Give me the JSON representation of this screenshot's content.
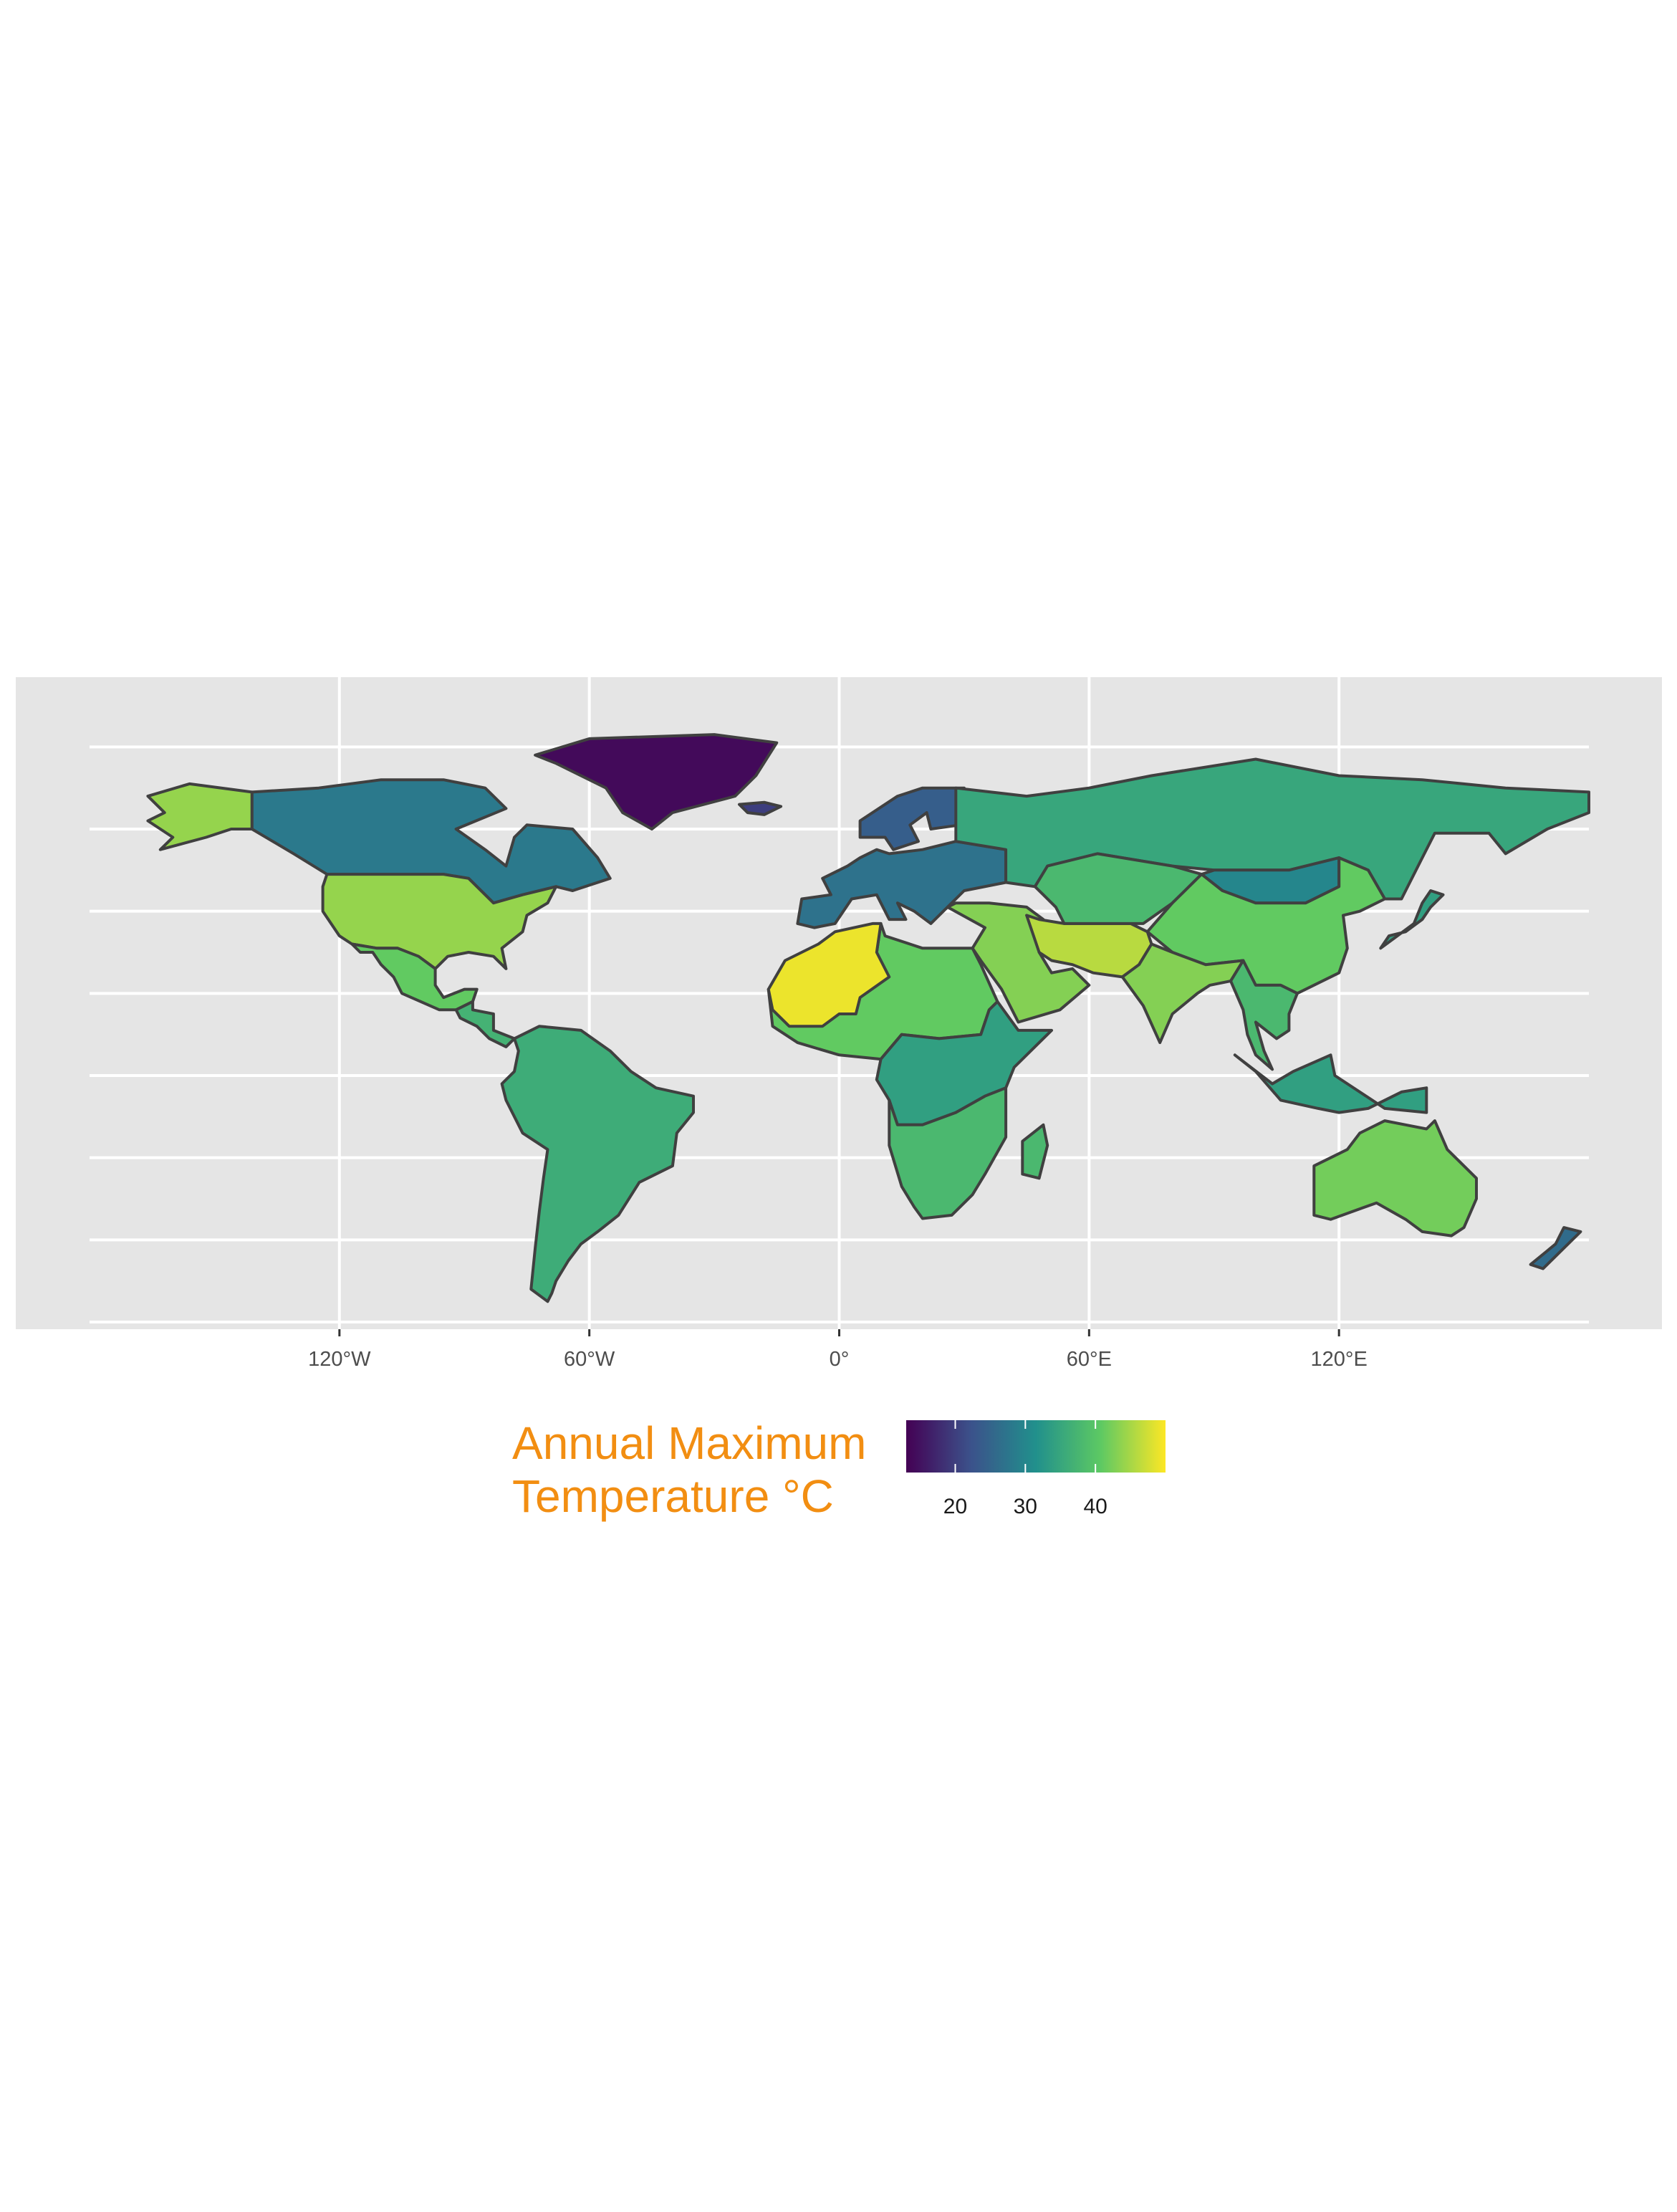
{
  "colors": {
    "panel_background": "#e5e5e5",
    "gridline": "#ffffff",
    "country_border": "#404040",
    "legend_title": "#f28e12",
    "viridis": [
      "#440154",
      "#3b528b",
      "#21908c",
      "#5dc963",
      "#fde725"
    ]
  },
  "x_axis": {
    "ticks": [
      {
        "lon": -120,
        "label": "120°W"
      },
      {
        "lon": -60,
        "label": "60°W"
      },
      {
        "lon": 0,
        "label": "0°"
      },
      {
        "lon": 60,
        "label": "60°E"
      },
      {
        "lon": 120,
        "label": "120°E"
      }
    ]
  },
  "legend": {
    "title_line1": "Annual Maximum",
    "title_line2": "Temperature °C",
    "min": 13,
    "max": 50,
    "ticks": [
      {
        "value": 20,
        "label": "20"
      },
      {
        "value": 30,
        "label": "30"
      },
      {
        "value": 40,
        "label": "40"
      }
    ]
  },
  "chart_data": {
    "type": "choropleth",
    "projection": "equirectangular",
    "lon_range": [
      -180,
      180
    ],
    "lat_range": [
      -60,
      90
    ],
    "grid": true,
    "colormap": "viridis",
    "regions": [
      {
        "region": "Greenland",
        "value": 14
      },
      {
        "region": "Canada",
        "value": 28
      },
      {
        "region": "Alaska",
        "value": 44
      },
      {
        "region": "United States",
        "value": 44
      },
      {
        "region": "Mexico",
        "value": 41
      },
      {
        "region": "Central America",
        "value": 37
      },
      {
        "region": "South America",
        "value": 36
      },
      {
        "region": "Iceland",
        "value": 20
      },
      {
        "region": "Scandinavia",
        "value": 24
      },
      {
        "region": "Europe",
        "value": 27
      },
      {
        "region": "Russia",
        "value": 35
      },
      {
        "region": "North Africa",
        "value": 41
      },
      {
        "region": "Algeria / Mali / Mauritania",
        "value": 49
      },
      {
        "region": "Central Africa",
        "value": 34
      },
      {
        "region": "Southern Africa",
        "value": 38
      },
      {
        "region": "Middle East",
        "value": 43
      },
      {
        "region": "Iran / Pakistan",
        "value": 46
      },
      {
        "region": "Central Asia",
        "value": 38
      },
      {
        "region": "Mongolia",
        "value": 30
      },
      {
        "region": "China",
        "value": 41
      },
      {
        "region": "India",
        "value": 43
      },
      {
        "region": "Southeast Asia",
        "value": 38
      },
      {
        "region": "Japan",
        "value": 34
      },
      {
        "region": "Indonesia",
        "value": 34
      },
      {
        "region": "Australia",
        "value": 42
      },
      {
        "region": "Madagascar",
        "value": 38
      },
      {
        "region": "New Zealand",
        "value": 26
      }
    ]
  }
}
